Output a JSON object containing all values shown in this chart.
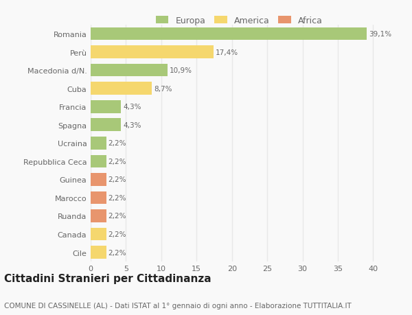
{
  "categories": [
    "Cile",
    "Canada",
    "Ruanda",
    "Marocco",
    "Guinea",
    "Repubblica Ceca",
    "Ucraina",
    "Spagna",
    "Francia",
    "Cuba",
    "Macedonia d/N.",
    "Perù",
    "Romania"
  ],
  "values": [
    2.2,
    2.2,
    2.2,
    2.2,
    2.2,
    2.2,
    2.2,
    4.3,
    4.3,
    8.7,
    10.9,
    17.4,
    39.1
  ],
  "labels": [
    "2,2%",
    "2,2%",
    "2,2%",
    "2,2%",
    "2,2%",
    "2,2%",
    "2,2%",
    "4,3%",
    "4,3%",
    "8,7%",
    "10,9%",
    "17,4%",
    "39,1%"
  ],
  "colors": [
    "#f5d76e",
    "#f5d76e",
    "#e8956d",
    "#e8956d",
    "#e8956d",
    "#a8c878",
    "#a8c878",
    "#a8c878",
    "#a8c878",
    "#f5d76e",
    "#a8c878",
    "#f5d76e",
    "#a8c878"
  ],
  "legend_labels": [
    "Europa",
    "America",
    "Africa"
  ],
  "legend_colors": [
    "#a8c878",
    "#f5d76e",
    "#e8956d"
  ],
  "title": "Cittadini Stranieri per Cittadinanza",
  "subtitle": "COMUNE DI CASSINELLE (AL) - Dati ISTAT al 1° gennaio di ogni anno - Elaborazione TUTTITALIA.IT",
  "xlim": [
    0,
    42
  ],
  "xticks": [
    0,
    5,
    10,
    15,
    20,
    25,
    30,
    35,
    40
  ],
  "background_color": "#f9f9f9",
  "grid_color": "#e8e8e8",
  "bar_height": 0.7,
  "title_fontsize": 11,
  "subtitle_fontsize": 7.5,
  "label_fontsize": 7.5,
  "tick_fontsize": 8,
  "ytick_fontsize": 8
}
